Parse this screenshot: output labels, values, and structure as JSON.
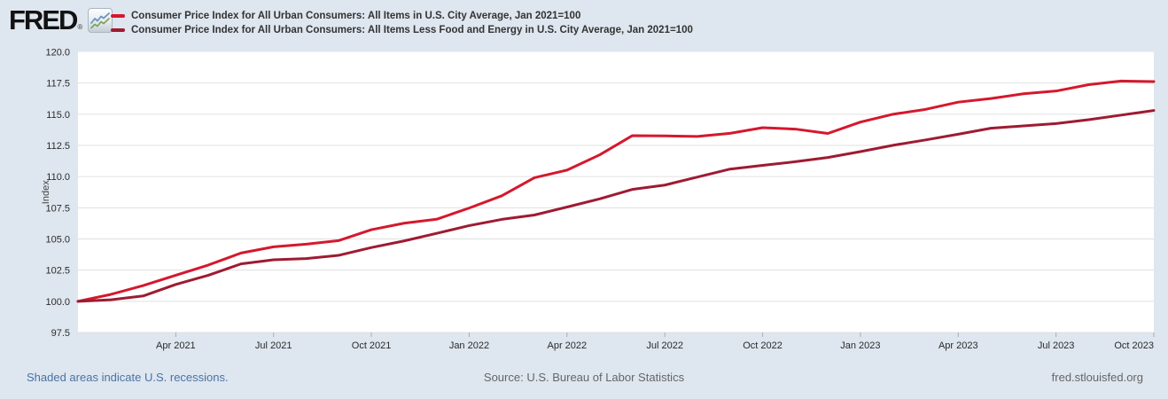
{
  "header": {
    "logo_text": "FRED",
    "registered_mark": "®"
  },
  "footer": {
    "recession_note": "Shaded areas indicate U.S. recessions.",
    "source": "Source: U.S. Bureau of Labor Statistics",
    "site": "fred.stlouisfed.org"
  },
  "colors": {
    "background": "#dee6ef",
    "plot_background": "#ffffff",
    "gridline": "#e0e0e0",
    "tick_mark": "#a4aeba",
    "axis_text": "#2b2b2b",
    "series_all_items": "#d5182d",
    "series_core": "#9e1b32",
    "link_blue": "#4a72a6",
    "footer_gray": "#666666"
  },
  "chart_data": {
    "type": "line",
    "title": "",
    "xlabel": "",
    "ylabel": "Index",
    "ylim": [
      97.5,
      120.0
    ],
    "ytick_step": 2.5,
    "grid": true,
    "legend_position": "top-left-header",
    "x": [
      "Jan 2021",
      "Feb 2021",
      "Mar 2021",
      "Apr 2021",
      "May 2021",
      "Jun 2021",
      "Jul 2021",
      "Aug 2021",
      "Sep 2021",
      "Oct 2021",
      "Nov 2021",
      "Dec 2021",
      "Jan 2022",
      "Feb 2022",
      "Mar 2022",
      "Apr 2022",
      "May 2022",
      "Jun 2022",
      "Jul 2022",
      "Aug 2022",
      "Sep 2022",
      "Oct 2022",
      "Nov 2022",
      "Dec 2022",
      "Jan 2023",
      "Feb 2023",
      "Mar 2023",
      "Apr 2023",
      "May 2023",
      "Jun 2023",
      "Jul 2023",
      "Aug 2023",
      "Sep 2023",
      "Oct 2023"
    ],
    "xtick_labels": [
      "Apr 2021",
      "Jul 2021",
      "Oct 2021",
      "Jan 2022",
      "Apr 2022",
      "Jul 2022",
      "Oct 2022",
      "Jan 2023",
      "Apr 2023",
      "Jul 2023",
      "Oct 2023"
    ],
    "series": [
      {
        "name": "Consumer Price Index for All Urban Consumers: All Items in U.S. City Average, Jan 2021=100",
        "color": "#d5182d",
        "values": [
          100.0,
          100.55,
          101.26,
          102.09,
          102.91,
          103.87,
          104.37,
          104.58,
          104.87,
          105.74,
          106.26,
          106.58,
          107.48,
          108.46,
          109.91,
          110.52,
          111.74,
          113.28,
          113.26,
          113.22,
          113.47,
          113.92,
          113.81,
          113.46,
          114.37,
          115.0,
          115.39,
          115.97,
          116.26,
          116.64,
          116.86,
          117.37,
          117.66,
          117.62
        ]
      },
      {
        "name": "Consumer Price Index for All Urban Consumers: All Items Less Food and Energy in U.S. City Average, Jan 2021=100",
        "color": "#9e1b32",
        "values": [
          100.0,
          100.12,
          100.43,
          101.35,
          102.09,
          103.0,
          103.33,
          103.43,
          103.69,
          104.31,
          104.84,
          105.45,
          106.07,
          106.57,
          106.92,
          107.56,
          108.21,
          108.97,
          109.32,
          109.96,
          110.6,
          110.9,
          111.19,
          111.53,
          112.0,
          112.51,
          112.94,
          113.4,
          113.88,
          114.06,
          114.25,
          114.56,
          114.93,
          115.3
        ]
      }
    ]
  }
}
